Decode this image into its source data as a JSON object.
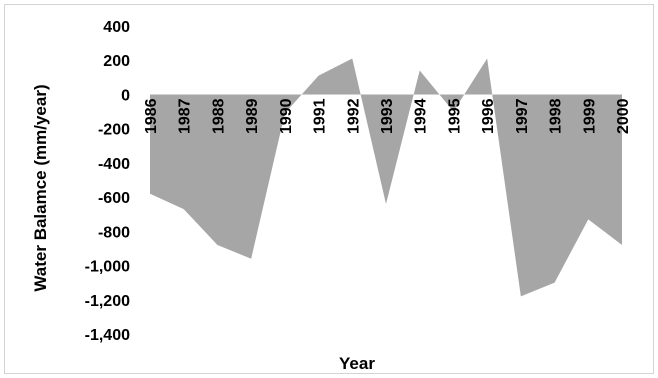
{
  "chart_data": {
    "type": "area",
    "title": "",
    "xlabel": "Year",
    "ylabel": "Water Balamce (mm/year)",
    "x": [
      "1986",
      "1987",
      "1988",
      "1989",
      "1990",
      "1991",
      "1992",
      "1993",
      "1994",
      "1995",
      "1996",
      "1997",
      "1998",
      "1999",
      "2000"
    ],
    "series": [
      {
        "values": [
          -580,
          -670,
          -880,
          -960,
          -110,
          110,
          210,
          -640,
          140,
          -100,
          210,
          -1180,
          -1100,
          -730,
          -880
        ]
      }
    ],
    "ylim": [
      -1400,
      400
    ],
    "yticks": [
      400,
      200,
      0,
      -200,
      -400,
      -600,
      -800,
      -1000,
      -1200,
      -1400
    ],
    "ytick_labels": [
      "400",
      "200",
      "0",
      "-200",
      "-400",
      "-600",
      "-800",
      "-1,000",
      "-1,200",
      "-1,400"
    ],
    "grid": false,
    "legend": "none",
    "fill_color": "#a6a6a6"
  }
}
